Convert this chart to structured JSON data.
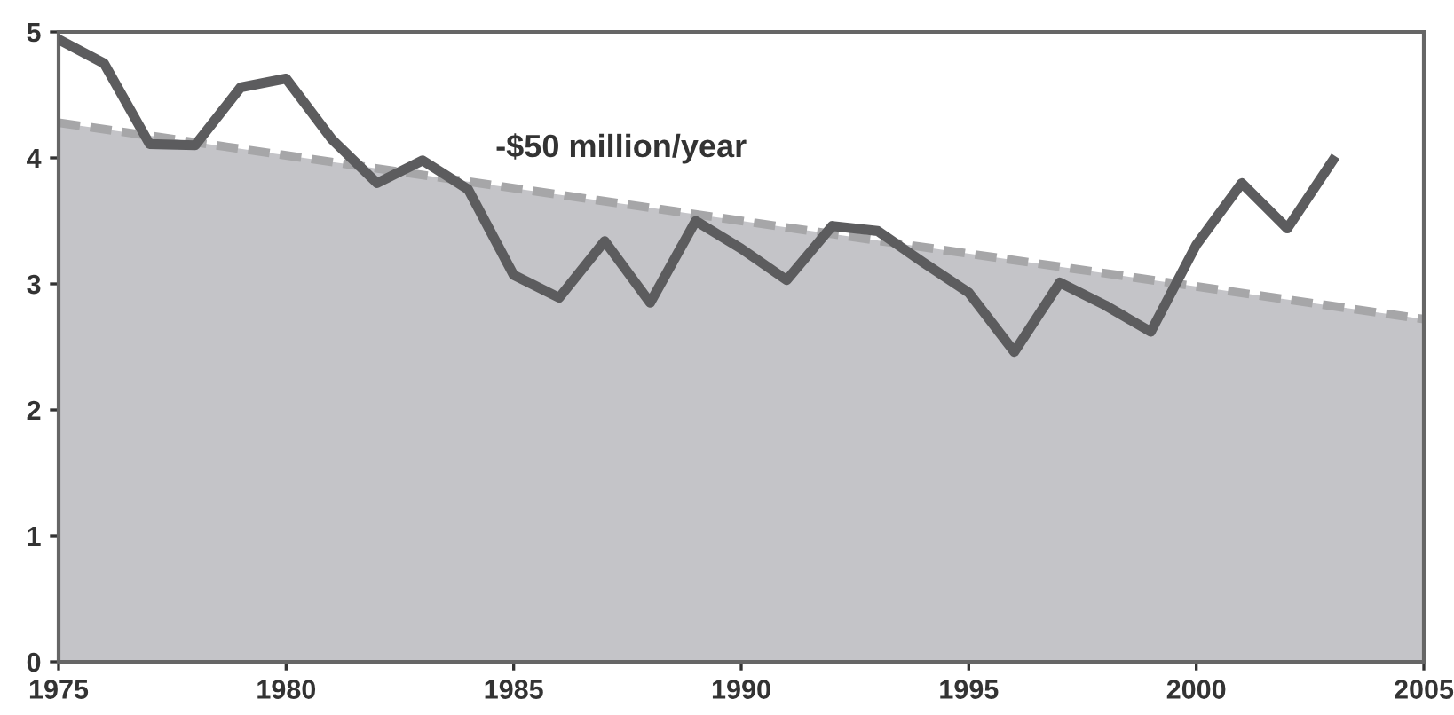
{
  "chart_data": {
    "type": "line",
    "x": [
      1975,
      1976,
      1977,
      1978,
      1979,
      1980,
      1981,
      1982,
      1983,
      1984,
      1985,
      1986,
      1987,
      1988,
      1989,
      1990,
      1991,
      1992,
      1993,
      1994,
      1995,
      1996,
      1997,
      1998,
      1999,
      2000,
      2001,
      2002,
      2003
    ],
    "series": [
      {
        "type": "area",
        "x": [
          1975,
          2005
        ],
        "values": [
          4.28,
          2.72
        ],
        "color": "#a6a6a8",
        "line_style": "dashed"
      },
      {
        "color": "#5c5c5e",
        "line_style": "solid",
        "values": [
          4.94,
          4.75,
          4.11,
          4.1,
          4.56,
          4.63,
          4.15,
          3.8,
          3.98,
          3.75,
          3.07,
          2.89,
          3.34,
          2.85,
          3.5,
          3.28,
          3.03,
          3.46,
          3.42,
          3.17,
          2.93,
          2.46,
          3.01,
          2.83,
          2.62,
          3.31,
          3.8,
          3.44,
          3.98
        ]
      }
    ],
    "annotations": [
      "-$50 million/year"
    ],
    "xlim": [
      1975,
      2005
    ],
    "xticks": [
      1975,
      1980,
      1985,
      1990,
      1995,
      2000,
      2005
    ],
    "ylim": [
      0,
      5
    ],
    "yticks": [
      0,
      1,
      2,
      3,
      4,
      5
    ],
    "grid": false,
    "legend": false,
    "marker": "none"
  }
}
